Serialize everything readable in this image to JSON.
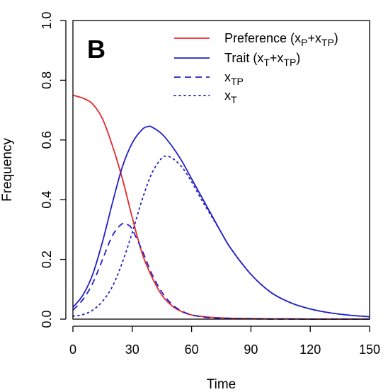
{
  "chart_data": {
    "type": "line",
    "panel_label": "B",
    "xlabel": "Time",
    "ylabel": "Frequency",
    "xlim": [
      0,
      150
    ],
    "ylim": [
      0,
      1
    ],
    "xticks": [
      0,
      30,
      60,
      90,
      120,
      150
    ],
    "yticks": [
      0.0,
      0.2,
      0.4,
      0.6,
      0.8,
      1.0
    ],
    "ytick_labels": [
      "0.0",
      "0.2",
      "0.4",
      "0.6",
      "0.8",
      "1.0"
    ],
    "grid": false,
    "legend_position": "top-right",
    "colors": {
      "red": "#e8262b",
      "blue": "#2020c8"
    },
    "series": [
      {
        "name": "Preference (xP+xTP)",
        "legend": {
          "main": "Preference (x",
          "sub1": "P",
          "mid": "+x",
          "sub2": "TP",
          "end": ")"
        },
        "color": "#e8262b",
        "style": "solid",
        "x": [
          0,
          5,
          10,
          15,
          20,
          25,
          30,
          35,
          40,
          45,
          50,
          55,
          60,
          65,
          70,
          80,
          90,
          100,
          110,
          120,
          130,
          140,
          150
        ],
        "y": [
          0.75,
          0.74,
          0.72,
          0.67,
          0.58,
          0.47,
          0.34,
          0.22,
          0.14,
          0.08,
          0.045,
          0.025,
          0.014,
          0.009,
          0.006,
          0.003,
          0.002,
          0.001,
          0.001,
          0.0,
          0.0,
          0.0,
          0.0
        ]
      },
      {
        "name": "Trait (xT+xTP)",
        "legend": {
          "main": "Trait (x",
          "sub1": "T",
          "mid": "+x",
          "sub2": "TP",
          "end": ")"
        },
        "color": "#2020c8",
        "style": "solid",
        "x": [
          0,
          5,
          10,
          15,
          20,
          25,
          30,
          35,
          38,
          40,
          45,
          50,
          55,
          60,
          65,
          70,
          75,
          80,
          90,
          100,
          110,
          120,
          130,
          140,
          150
        ],
        "y": [
          0.04,
          0.08,
          0.15,
          0.26,
          0.39,
          0.51,
          0.59,
          0.635,
          0.645,
          0.643,
          0.62,
          0.58,
          0.53,
          0.47,
          0.41,
          0.35,
          0.29,
          0.235,
          0.15,
          0.09,
          0.055,
          0.034,
          0.021,
          0.013,
          0.008
        ]
      },
      {
        "name": "xTP",
        "legend": {
          "main": "x",
          "sub1": "TP"
        },
        "color": "#2020c8",
        "style": "dashed",
        "x": [
          0,
          5,
          10,
          15,
          20,
          25,
          28,
          30,
          35,
          40,
          45,
          50,
          55,
          60,
          65,
          70,
          80,
          90,
          100,
          110,
          120,
          130,
          140,
          150
        ],
        "y": [
          0.03,
          0.065,
          0.12,
          0.2,
          0.28,
          0.32,
          0.315,
          0.3,
          0.23,
          0.15,
          0.09,
          0.05,
          0.027,
          0.014,
          0.008,
          0.004,
          0.002,
          0.001,
          0.0,
          0.0,
          0.0,
          0.0,
          0.0,
          0.0
        ]
      },
      {
        "name": "xT",
        "legend": {
          "main": "x",
          "sub1": "T"
        },
        "color": "#2020c8",
        "style": "dotted",
        "x": [
          0,
          5,
          10,
          15,
          20,
          25,
          30,
          35,
          40,
          45,
          47,
          50,
          55,
          60,
          65,
          70,
          75,
          80,
          90,
          100,
          110,
          120,
          130,
          140,
          150
        ],
        "y": [
          0.01,
          0.015,
          0.03,
          0.06,
          0.11,
          0.19,
          0.29,
          0.4,
          0.49,
          0.54,
          0.545,
          0.54,
          0.51,
          0.46,
          0.4,
          0.345,
          0.29,
          0.235,
          0.15,
          0.09,
          0.055,
          0.034,
          0.021,
          0.013,
          0.008
        ]
      }
    ]
  }
}
